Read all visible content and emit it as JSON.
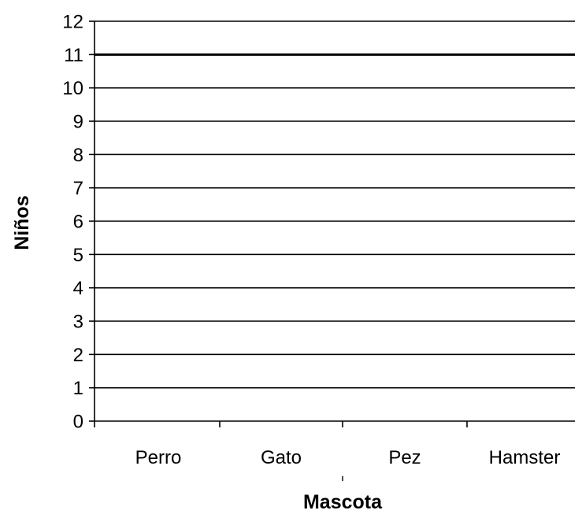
{
  "chart_data": {
    "type": "bar",
    "title": "",
    "xlabel": "Mascota",
    "ylabel": "Niños",
    "categories": [
      "Perro",
      "Gato",
      "Pez",
      "Hamster"
    ],
    "series": [
      {
        "values": [
          0,
          0,
          0,
          0
        ]
      }
    ],
    "ylim": [
      0,
      12
    ],
    "y_ticks": [
      "0",
      "1",
      "2",
      "3",
      "4",
      "5",
      "6",
      "7",
      "8",
      "9",
      "10",
      "11",
      "12"
    ],
    "grid": true,
    "legend": "none"
  }
}
